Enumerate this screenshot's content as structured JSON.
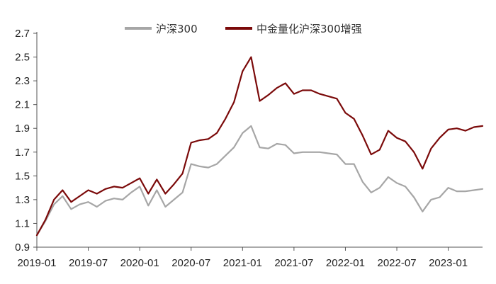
{
  "chart_data": {
    "type": "line",
    "title": "",
    "xlabel": "",
    "ylabel": "",
    "ylim": [
      0.9,
      2.7
    ],
    "y_ticks": [
      "0.9",
      "1.1",
      "1.3",
      "1.5",
      "1.7",
      "1.9",
      "2.1",
      "2.3",
      "2.5",
      "2.7"
    ],
    "x_ticks": [
      "2019-01",
      "2019-07",
      "2020-01",
      "2020-07",
      "2021-01",
      "2021-07",
      "2022-01",
      "2022-07",
      "2023-01"
    ],
    "x_range": [
      "2019-01",
      "2023-05"
    ],
    "grid": false,
    "legend_position": "top",
    "series": [
      {
        "name": "沪深300",
        "color": "#a6a6a6",
        "points": [
          [
            "2019-01",
            1.0
          ],
          [
            "2019-02",
            1.12
          ],
          [
            "2019-03",
            1.26
          ],
          [
            "2019-04",
            1.33
          ],
          [
            "2019-05",
            1.22
          ],
          [
            "2019-06",
            1.26
          ],
          [
            "2019-07",
            1.28
          ],
          [
            "2019-08",
            1.24
          ],
          [
            "2019-09",
            1.29
          ],
          [
            "2019-10",
            1.31
          ],
          [
            "2019-11",
            1.3
          ],
          [
            "2019-12",
            1.36
          ],
          [
            "2020-01",
            1.41
          ],
          [
            "2020-02",
            1.25
          ],
          [
            "2020-03",
            1.38
          ],
          [
            "2020-04",
            1.24
          ],
          [
            "2020-05",
            1.3
          ],
          [
            "2020-06",
            1.36
          ],
          [
            "2020-07",
            1.6
          ],
          [
            "2020-08",
            1.58
          ],
          [
            "2020-09",
            1.57
          ],
          [
            "2020-10",
            1.6
          ],
          [
            "2020-11",
            1.67
          ],
          [
            "2020-12",
            1.74
          ],
          [
            "2021-01",
            1.86
          ],
          [
            "2021-02",
            1.92
          ],
          [
            "2021-03",
            1.74
          ],
          [
            "2021-04",
            1.73
          ],
          [
            "2021-05",
            1.77
          ],
          [
            "2021-06",
            1.76
          ],
          [
            "2021-07",
            1.69
          ],
          [
            "2021-08",
            1.7
          ],
          [
            "2021-09",
            1.7
          ],
          [
            "2021-10",
            1.7
          ],
          [
            "2021-11",
            1.69
          ],
          [
            "2021-12",
            1.68
          ],
          [
            "2022-01",
            1.6
          ],
          [
            "2022-02",
            1.6
          ],
          [
            "2022-03",
            1.45
          ],
          [
            "2022-04",
            1.36
          ],
          [
            "2022-05",
            1.4
          ],
          [
            "2022-06",
            1.49
          ],
          [
            "2022-07",
            1.44
          ],
          [
            "2022-08",
            1.41
          ],
          [
            "2022-09",
            1.32
          ],
          [
            "2022-10",
            1.2
          ],
          [
            "2022-11",
            1.3
          ],
          [
            "2022-12",
            1.32
          ],
          [
            "2023-01",
            1.4
          ],
          [
            "2023-02",
            1.37
          ],
          [
            "2023-03",
            1.37
          ],
          [
            "2023-04",
            1.38
          ],
          [
            "2023-05",
            1.39
          ]
        ]
      },
      {
        "name": "中金量化沪深300增强",
        "color": "#7b0a0a",
        "points": [
          [
            "2019-01",
            1.0
          ],
          [
            "2019-02",
            1.13
          ],
          [
            "2019-03",
            1.3
          ],
          [
            "2019-04",
            1.38
          ],
          [
            "2019-05",
            1.28
          ],
          [
            "2019-06",
            1.33
          ],
          [
            "2019-07",
            1.38
          ],
          [
            "2019-08",
            1.35
          ],
          [
            "2019-09",
            1.39
          ],
          [
            "2019-10",
            1.41
          ],
          [
            "2019-11",
            1.4
          ],
          [
            "2019-12",
            1.44
          ],
          [
            "2020-01",
            1.48
          ],
          [
            "2020-02",
            1.35
          ],
          [
            "2020-03",
            1.47
          ],
          [
            "2020-04",
            1.35
          ],
          [
            "2020-05",
            1.43
          ],
          [
            "2020-06",
            1.52
          ],
          [
            "2020-07",
            1.78
          ],
          [
            "2020-08",
            1.8
          ],
          [
            "2020-09",
            1.81
          ],
          [
            "2020-10",
            1.86
          ],
          [
            "2020-11",
            1.98
          ],
          [
            "2020-12",
            2.12
          ],
          [
            "2021-01",
            2.38
          ],
          [
            "2021-02",
            2.5
          ],
          [
            "2021-03",
            2.13
          ],
          [
            "2021-04",
            2.18
          ],
          [
            "2021-05",
            2.24
          ],
          [
            "2021-06",
            2.28
          ],
          [
            "2021-07",
            2.19
          ],
          [
            "2021-08",
            2.22
          ],
          [
            "2021-09",
            2.22
          ],
          [
            "2021-10",
            2.19
          ],
          [
            "2021-11",
            2.17
          ],
          [
            "2021-12",
            2.15
          ],
          [
            "2022-01",
            2.03
          ],
          [
            "2022-02",
            1.98
          ],
          [
            "2022-03",
            1.84
          ],
          [
            "2022-04",
            1.68
          ],
          [
            "2022-05",
            1.72
          ],
          [
            "2022-06",
            1.88
          ],
          [
            "2022-07",
            1.82
          ],
          [
            "2022-08",
            1.79
          ],
          [
            "2022-09",
            1.7
          ],
          [
            "2022-10",
            1.56
          ],
          [
            "2022-11",
            1.73
          ],
          [
            "2022-12",
            1.82
          ],
          [
            "2023-01",
            1.89
          ],
          [
            "2023-02",
            1.9
          ],
          [
            "2023-03",
            1.88
          ],
          [
            "2023-04",
            1.91
          ],
          [
            "2023-05",
            1.92
          ]
        ]
      }
    ]
  }
}
